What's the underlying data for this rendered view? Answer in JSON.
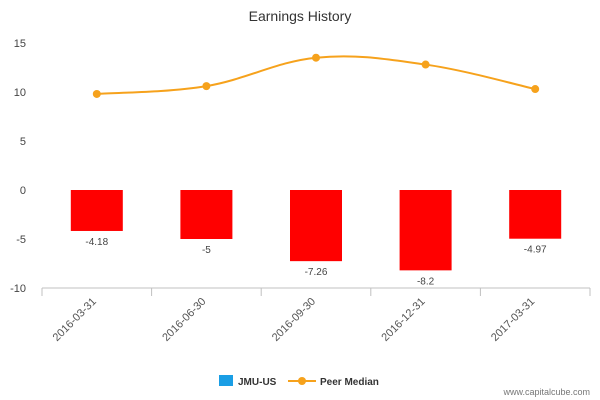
{
  "chart_data": {
    "type": "bar",
    "title": "Earnings History",
    "xlabel": "",
    "ylabel": "",
    "ylim": [
      -10,
      15
    ],
    "yticks": [
      15,
      10,
      5,
      0,
      -5,
      -10
    ],
    "categories": [
      "2016-03-31",
      "2016-06-30",
      "2016-09-30",
      "2016-12-31",
      "2017-03-31"
    ],
    "series": [
      {
        "name": "JMU-US",
        "kind": "bar",
        "color": "#ff0000",
        "legend_color": "#1a9ee5",
        "values": [
          -4.18,
          -5,
          -7.26,
          -8.2,
          -4.97
        ],
        "labels": [
          "-4.18",
          "-5",
          "-7.26",
          "-8.2",
          "-4.97"
        ]
      },
      {
        "name": "Peer Median",
        "kind": "line",
        "color": "#f6a21c",
        "values": [
          9.8,
          10.6,
          13.5,
          12.8,
          10.3
        ]
      }
    ],
    "legend_position": "bottom-center",
    "grid": false
  },
  "credit": "www.capitalcube.com"
}
